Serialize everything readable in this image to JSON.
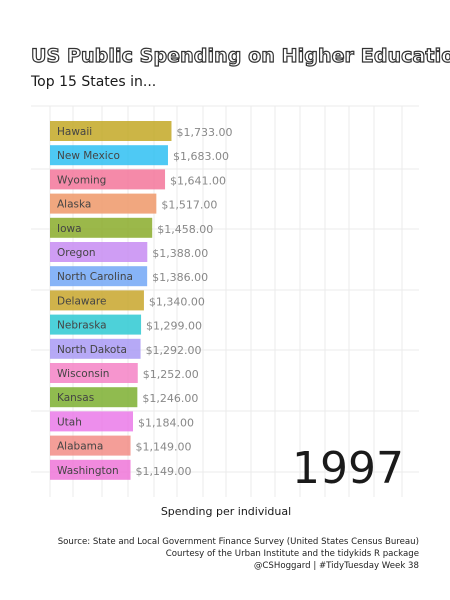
{
  "title": "US Public Spending on Higher Education",
  "subtitle": "Top 15 States in...",
  "caption": [
    "Source: State and Local Government Finance Survey (United States Census Bureau)",
    "Courtesy of the Urban Institute and the tidykids R package",
    "@CSHoggard | #TidyTuesday Week 38"
  ],
  "chart_data": {
    "type": "bar",
    "orientation": "horizontal",
    "year_label": "1997",
    "xlabel": "Spending per individual",
    "ylabel": "",
    "grid": true,
    "xlim": [
      0,
      3300
    ],
    "categories": [
      "Hawaii",
      "New Mexico",
      "Wyoming",
      "Alaska",
      "Iowa",
      "Oregon",
      "North Carolina",
      "Delaware",
      "Nebraska",
      "North Dakota",
      "Wisconsin",
      "Kansas",
      "Utah",
      "Alabama",
      "Washington"
    ],
    "values": [
      1733,
      1683,
      1641,
      1517,
      1458,
      1388,
      1386,
      1340,
      1299,
      1292,
      1252,
      1246,
      1184,
      1149,
      1149
    ],
    "value_labels": [
      "$1,733.00",
      "$1,683.00",
      "$1,641.00",
      "$1,517.00",
      "$1,458.00",
      "$1,388.00",
      "$1,386.00",
      "$1,340.00",
      "$1,299.00",
      "$1,292.00",
      "$1,252.00",
      "$1,246.00",
      "$1,184.00",
      "$1,149.00",
      "$1,149.00"
    ],
    "colors": [
      "#c3a826",
      "#2fbff2",
      "#f3759a",
      "#ef9868",
      "#8aac2a",
      "#c78cf2",
      "#72a7f6",
      "#c8a62c",
      "#2ec9d2",
      "#a99af5",
      "#f583c6",
      "#7daf30",
      "#ea7ae9",
      "#f28d86",
      "#ef76d8"
    ]
  }
}
